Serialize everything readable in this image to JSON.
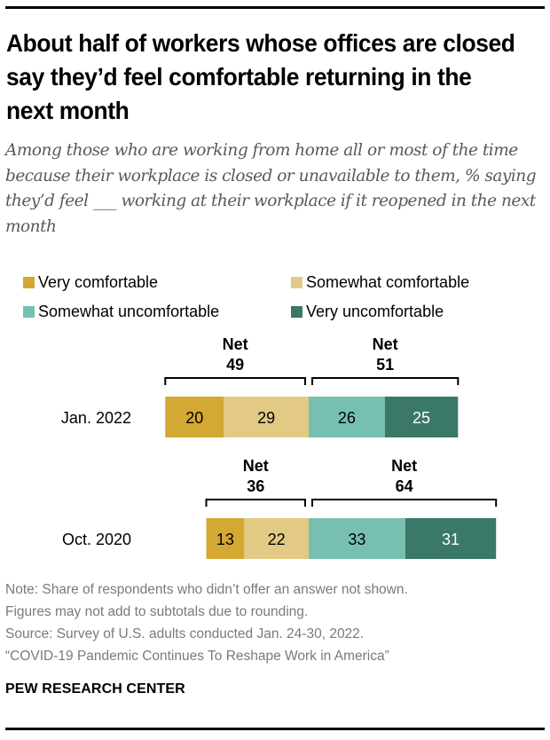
{
  "chart_data": {
    "type": "bar",
    "orientation": "horizontal",
    "stacked": true,
    "diverging": true,
    "title": "About half of workers whose offices are closed say they’d feel comfortable returning in the next month",
    "subtitle": "Among those who are working from home all or most of the time because their workplace is closed or unavailable to them, % saying they’d feel ___ working at their workplace if it reopened in the next month",
    "categories": [
      "Jan. 2022",
      "Oct. 2020"
    ],
    "series": [
      {
        "name": "Very comfortable",
        "color": "#d3a833",
        "label_color": "#000000",
        "values": [
          20,
          13
        ]
      },
      {
        "name": "Somewhat comfortable",
        "color": "#e2ca85",
        "label_color": "#000000",
        "values": [
          29,
          22
        ]
      },
      {
        "name": "Somewhat uncomfortable",
        "color": "#77c0b1",
        "label_color": "#000000",
        "values": [
          26,
          33
        ]
      },
      {
        "name": "Very uncomfortable",
        "color": "#3a7868",
        "label_color": "#ffffff",
        "values": [
          25,
          31
        ]
      }
    ],
    "nets": [
      {
        "category": "Jan. 2022",
        "comfortable": {
          "label": "Net",
          "value": "49"
        },
        "uncomfortable": {
          "label": "Net",
          "value": "51"
        }
      },
      {
        "category": "Oct. 2020",
        "comfortable": {
          "label": "Net",
          "value": "36"
        },
        "uncomfortable": {
          "label": "Net",
          "value": "64"
        }
      }
    ],
    "legend": {
      "placement": "top",
      "columns": 2
    },
    "xlabel": "",
    "ylabel": ""
  },
  "notes": [
    "Note: Share of respondents who didn’t offer an answer not shown.",
    "Figures may not add to subtotals due to rounding.",
    "Source: Survey of U.S. adults conducted Jan. 24-30, 2022.",
    "“COVID-19 Pandemic Continues To Reshape Work in America”"
  ],
  "branding": "PEW RESEARCH CENTER"
}
